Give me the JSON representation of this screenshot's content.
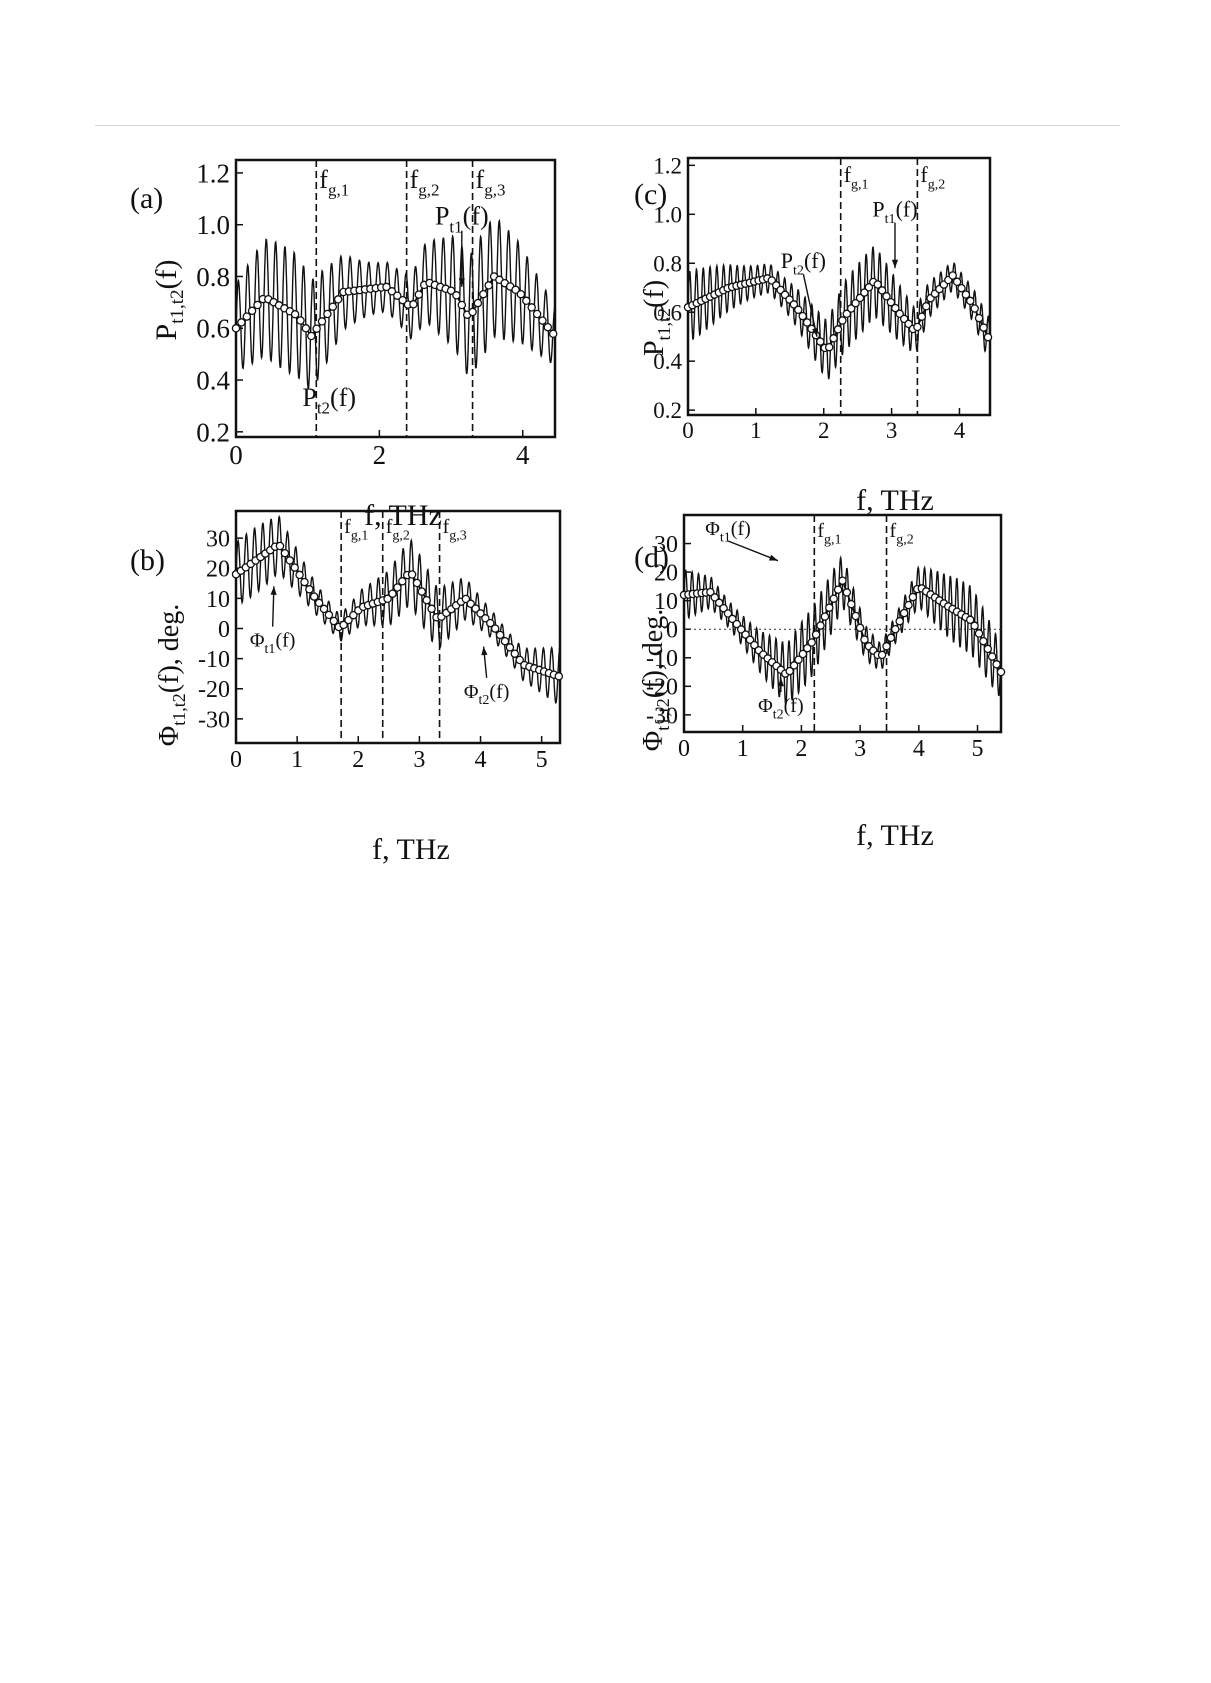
{
  "figure": {
    "panels": [
      {
        "key": "a",
        "label": "(a)",
        "ylabel_main": "P",
        "ylabel_sub": "t1,t2",
        "ylabel_tail": "(f)",
        "xlabel": "f, THz"
      },
      {
        "key": "b",
        "label": "(b)",
        "ylabel_main": "Φ",
        "ylabel_sub": "t1,t2",
        "ylabel_tail": "(f), deg.",
        "xlabel": "f, THz"
      },
      {
        "key": "c",
        "label": "(c)",
        "ylabel_main": "P",
        "ylabel_sub": "t1,t2",
        "ylabel_tail": "(f)",
        "xlabel": "f, THz"
      },
      {
        "key": "d",
        "label": "(d)",
        "ylabel_main": "Φ",
        "ylabel_sub": "t1,t2",
        "ylabel_tail": "(f), deg.",
        "xlabel": "f, THz"
      }
    ]
  },
  "chart_data": [
    {
      "panel": "(a)",
      "type": "line",
      "xlabel": "f, THz",
      "ylabel": "Pt1,t2(f)",
      "xlim": [
        0,
        4.45
      ],
      "ylim": [
        0.18,
        1.25
      ],
      "xticks": [
        0,
        2,
        4
      ],
      "xtick_labels": [
        "0",
        "2",
        "4"
      ],
      "yticks": [
        0.2,
        0.4,
        0.6,
        0.8,
        1.0,
        1.2
      ],
      "ytick_labels": [
        "0.2",
        "0.4",
        "0.6",
        "0.8",
        "1.0",
        "1.2"
      ],
      "series": [
        {
          "name": "Pt1(f)",
          "style": "oscillating",
          "x": [
            0,
            0.4,
            0.85,
            1.05,
            1.5,
            2.1,
            2.45,
            2.65,
            3.05,
            3.25,
            3.6,
            3.95,
            4.45
          ],
          "y": [
            0.6,
            0.72,
            0.65,
            0.57,
            0.74,
            0.76,
            0.68,
            0.78,
            0.74,
            0.64,
            0.8,
            0.74,
            0.57
          ],
          "oscillation_amplitude": 0.24,
          "oscillation_period": 0.13
        },
        {
          "name": "Pt2(f)",
          "style": "open-circle",
          "x": [
            0,
            0.4,
            0.85,
            1.05,
            1.5,
            2.1,
            2.45,
            2.65,
            3.05,
            3.25,
            3.6,
            3.95,
            4.45
          ],
          "y": [
            0.6,
            0.72,
            0.65,
            0.57,
            0.74,
            0.76,
            0.68,
            0.78,
            0.74,
            0.64,
            0.8,
            0.74,
            0.57
          ],
          "marker_spacing": 0.075
        }
      ],
      "vlines": [
        {
          "x": 1.12,
          "label_main": "f",
          "label_sub": "g,1"
        },
        {
          "x": 2.38,
          "label_main": "f",
          "label_sub": "g,2"
        },
        {
          "x": 3.3,
          "label_main": "f",
          "label_sub": "g,3"
        }
      ],
      "annotations": [
        {
          "main": "P",
          "sub": "t1",
          "tail": "(f)",
          "x": 3.15,
          "y": 1.0,
          "arrow_to": [
            3.15,
            0.76
          ]
        },
        {
          "main": "P",
          "sub": "t2",
          "tail": "(f)",
          "x": 1.3,
          "y": 0.3,
          "arrow_to": null
        }
      ]
    },
    {
      "panel": "(b)",
      "type": "line",
      "xlabel": "f, THz",
      "ylabel": "Φt1,t2(f), deg.",
      "xlim": [
        0,
        5.3
      ],
      "ylim": [
        -38,
        39
      ],
      "xticks": [
        0,
        1,
        2,
        3,
        4,
        5
      ],
      "xtick_labels": [
        "0",
        "1",
        "2",
        "3",
        "4",
        "5"
      ],
      "yticks": [
        -30,
        -20,
        -10,
        0,
        10,
        20,
        30
      ],
      "ytick_labels": [
        "-30",
        "-20",
        "-10",
        "0",
        "10",
        "20",
        "30"
      ],
      "series": [
        {
          "name": "Φt1(f)",
          "style": "oscillating",
          "x": [
            0,
            0.7,
            1.3,
            1.7,
            2.05,
            2.5,
            2.85,
            3.3,
            3.75,
            4.2,
            4.7,
            5.3
          ],
          "y": [
            18,
            28,
            10,
            0,
            7,
            10,
            19,
            3,
            10,
            1,
            -12,
            -16
          ],
          "oscillation_amplitude": 11,
          "oscillation_period": 0.135
        },
        {
          "name": "Φt2(f)",
          "style": "open-circle",
          "x": [
            0,
            0.7,
            1.3,
            1.7,
            2.05,
            2.5,
            2.85,
            3.3,
            3.75,
            4.2,
            4.7,
            5.3
          ],
          "y": [
            18,
            28,
            10,
            0,
            7,
            10,
            19,
            3,
            10,
            1,
            -12,
            -16
          ],
          "marker_spacing": 0.08
        }
      ],
      "vlines": [
        {
          "x": 1.72,
          "label_main": "f",
          "label_sub": "g,1"
        },
        {
          "x": 2.4,
          "label_main": "f",
          "label_sub": "g,2"
        },
        {
          "x": 3.33,
          "label_main": "f",
          "label_sub": "g,3"
        }
      ],
      "annotations": [
        {
          "main": "Φ",
          "sub": "t1",
          "tail": "(f)",
          "x": 0.6,
          "y": -6,
          "arrow_to": [
            0.62,
            14
          ]
        },
        {
          "main": "Φ",
          "sub": "t2",
          "tail": "(f)",
          "x": 4.1,
          "y": -23,
          "arrow_to": [
            4.05,
            -6
          ]
        }
      ]
    },
    {
      "panel": "(c)",
      "type": "line",
      "xlabel": "f, THz",
      "ylabel": "Pt1,t2(f)",
      "xlim": [
        0,
        4.45
      ],
      "ylim": [
        0.18,
        1.23
      ],
      "xticks": [
        0,
        1,
        2,
        3,
        4
      ],
      "xtick_labels": [
        "0",
        "1",
        "2",
        "3",
        "4"
      ],
      "yticks": [
        0.2,
        0.4,
        0.6,
        0.8,
        1.0,
        1.2
      ],
      "ytick_labels": [
        "0.2",
        "0.4",
        "0.6",
        "0.8",
        "1.0",
        "1.2"
      ],
      "series": [
        {
          "name": "Pt1(f)",
          "style": "oscillating",
          "x": [
            0,
            0.6,
            1.2,
            1.6,
            2.05,
            2.3,
            2.75,
            3.1,
            3.35,
            3.55,
            3.9,
            4.2,
            4.45
          ],
          "y": [
            0.62,
            0.7,
            0.74,
            0.62,
            0.44,
            0.58,
            0.73,
            0.6,
            0.52,
            0.65,
            0.75,
            0.63,
            0.48
          ],
          "oscillation_amplitude": 0.15,
          "oscillation_period": 0.1
        },
        {
          "name": "Pt2(f)",
          "style": "open-circle",
          "x": [
            0,
            0.6,
            1.2,
            1.6,
            2.05,
            2.3,
            2.75,
            3.1,
            3.35,
            3.55,
            3.9,
            4.2,
            4.45
          ],
          "y": [
            0.62,
            0.7,
            0.74,
            0.62,
            0.44,
            0.58,
            0.73,
            0.6,
            0.52,
            0.65,
            0.75,
            0.63,
            0.48
          ],
          "marker_spacing": 0.065
        }
      ],
      "vlines": [
        {
          "x": 2.25,
          "label_main": "f",
          "label_sub": "g,1"
        },
        {
          "x": 3.38,
          "label_main": "f",
          "label_sub": "g,2"
        }
      ],
      "annotations": [
        {
          "main": "P",
          "sub": "t1",
          "tail": "(f)",
          "x": 3.05,
          "y": 0.99,
          "arrow_to": [
            3.05,
            0.78
          ]
        },
        {
          "main": "P",
          "sub": "t2",
          "tail": "(f)",
          "x": 1.7,
          "y": 0.78,
          "arrow_to": [
            1.9,
            0.5
          ]
        }
      ]
    },
    {
      "panel": "(d)",
      "type": "line",
      "xlabel": "f, THz",
      "ylabel": "Φt1,t2(f), deg.",
      "xlim": [
        0,
        5.4
      ],
      "ylim": [
        -36,
        40
      ],
      "xticks": [
        0,
        1,
        2,
        3,
        4,
        5
      ],
      "xtick_labels": [
        "0",
        "1",
        "2",
        "3",
        "4",
        "5"
      ],
      "yticks": [
        -30,
        -20,
        -10,
        0,
        10,
        20,
        30
      ],
      "ytick_labels": [
        "-30",
        "-20",
        "-10",
        "0",
        "10",
        "20",
        "30"
      ],
      "series": [
        {
          "name": "Φt1(f)",
          "style": "oscillating",
          "x": [
            0,
            0.45,
            0.85,
            1.3,
            1.75,
            2.2,
            2.7,
            3.1,
            3.35,
            3.6,
            4.0,
            4.5,
            4.9,
            5.4
          ],
          "y": [
            12,
            13,
            3,
            -8,
            -16,
            -4,
            17,
            -5,
            -10,
            0,
            15,
            8,
            3,
            -15
          ],
          "oscillation_amplitude": 12,
          "oscillation_period": 0.11
        },
        {
          "name": "Φt2(f)",
          "style": "open-circle",
          "x": [
            0,
            0.45,
            0.85,
            1.3,
            1.75,
            2.2,
            2.7,
            3.1,
            3.35,
            3.6,
            4.0,
            4.5,
            4.9,
            5.4
          ],
          "y": [
            12,
            13,
            3,
            -8,
            -16,
            -4,
            17,
            -5,
            -10,
            0,
            15,
            8,
            3,
            -15
          ],
          "marker_spacing": 0.075
        }
      ],
      "hline": 0,
      "vlines": [
        {
          "x": 2.22,
          "label_main": "f",
          "label_sub": "g,1"
        },
        {
          "x": 3.45,
          "label_main": "f",
          "label_sub": "g,2"
        }
      ],
      "annotations": [
        {
          "main": "Φ",
          "sub": "t1",
          "tail": "(f)",
          "x": 0.75,
          "y": 33,
          "arrow_to": [
            1.6,
            24
          ]
        },
        {
          "main": "Φ",
          "sub": "t2",
          "tail": "(f)",
          "x": 1.65,
          "y": -29,
          "arrow_to": [
            1.65,
            -17
          ]
        }
      ]
    }
  ]
}
